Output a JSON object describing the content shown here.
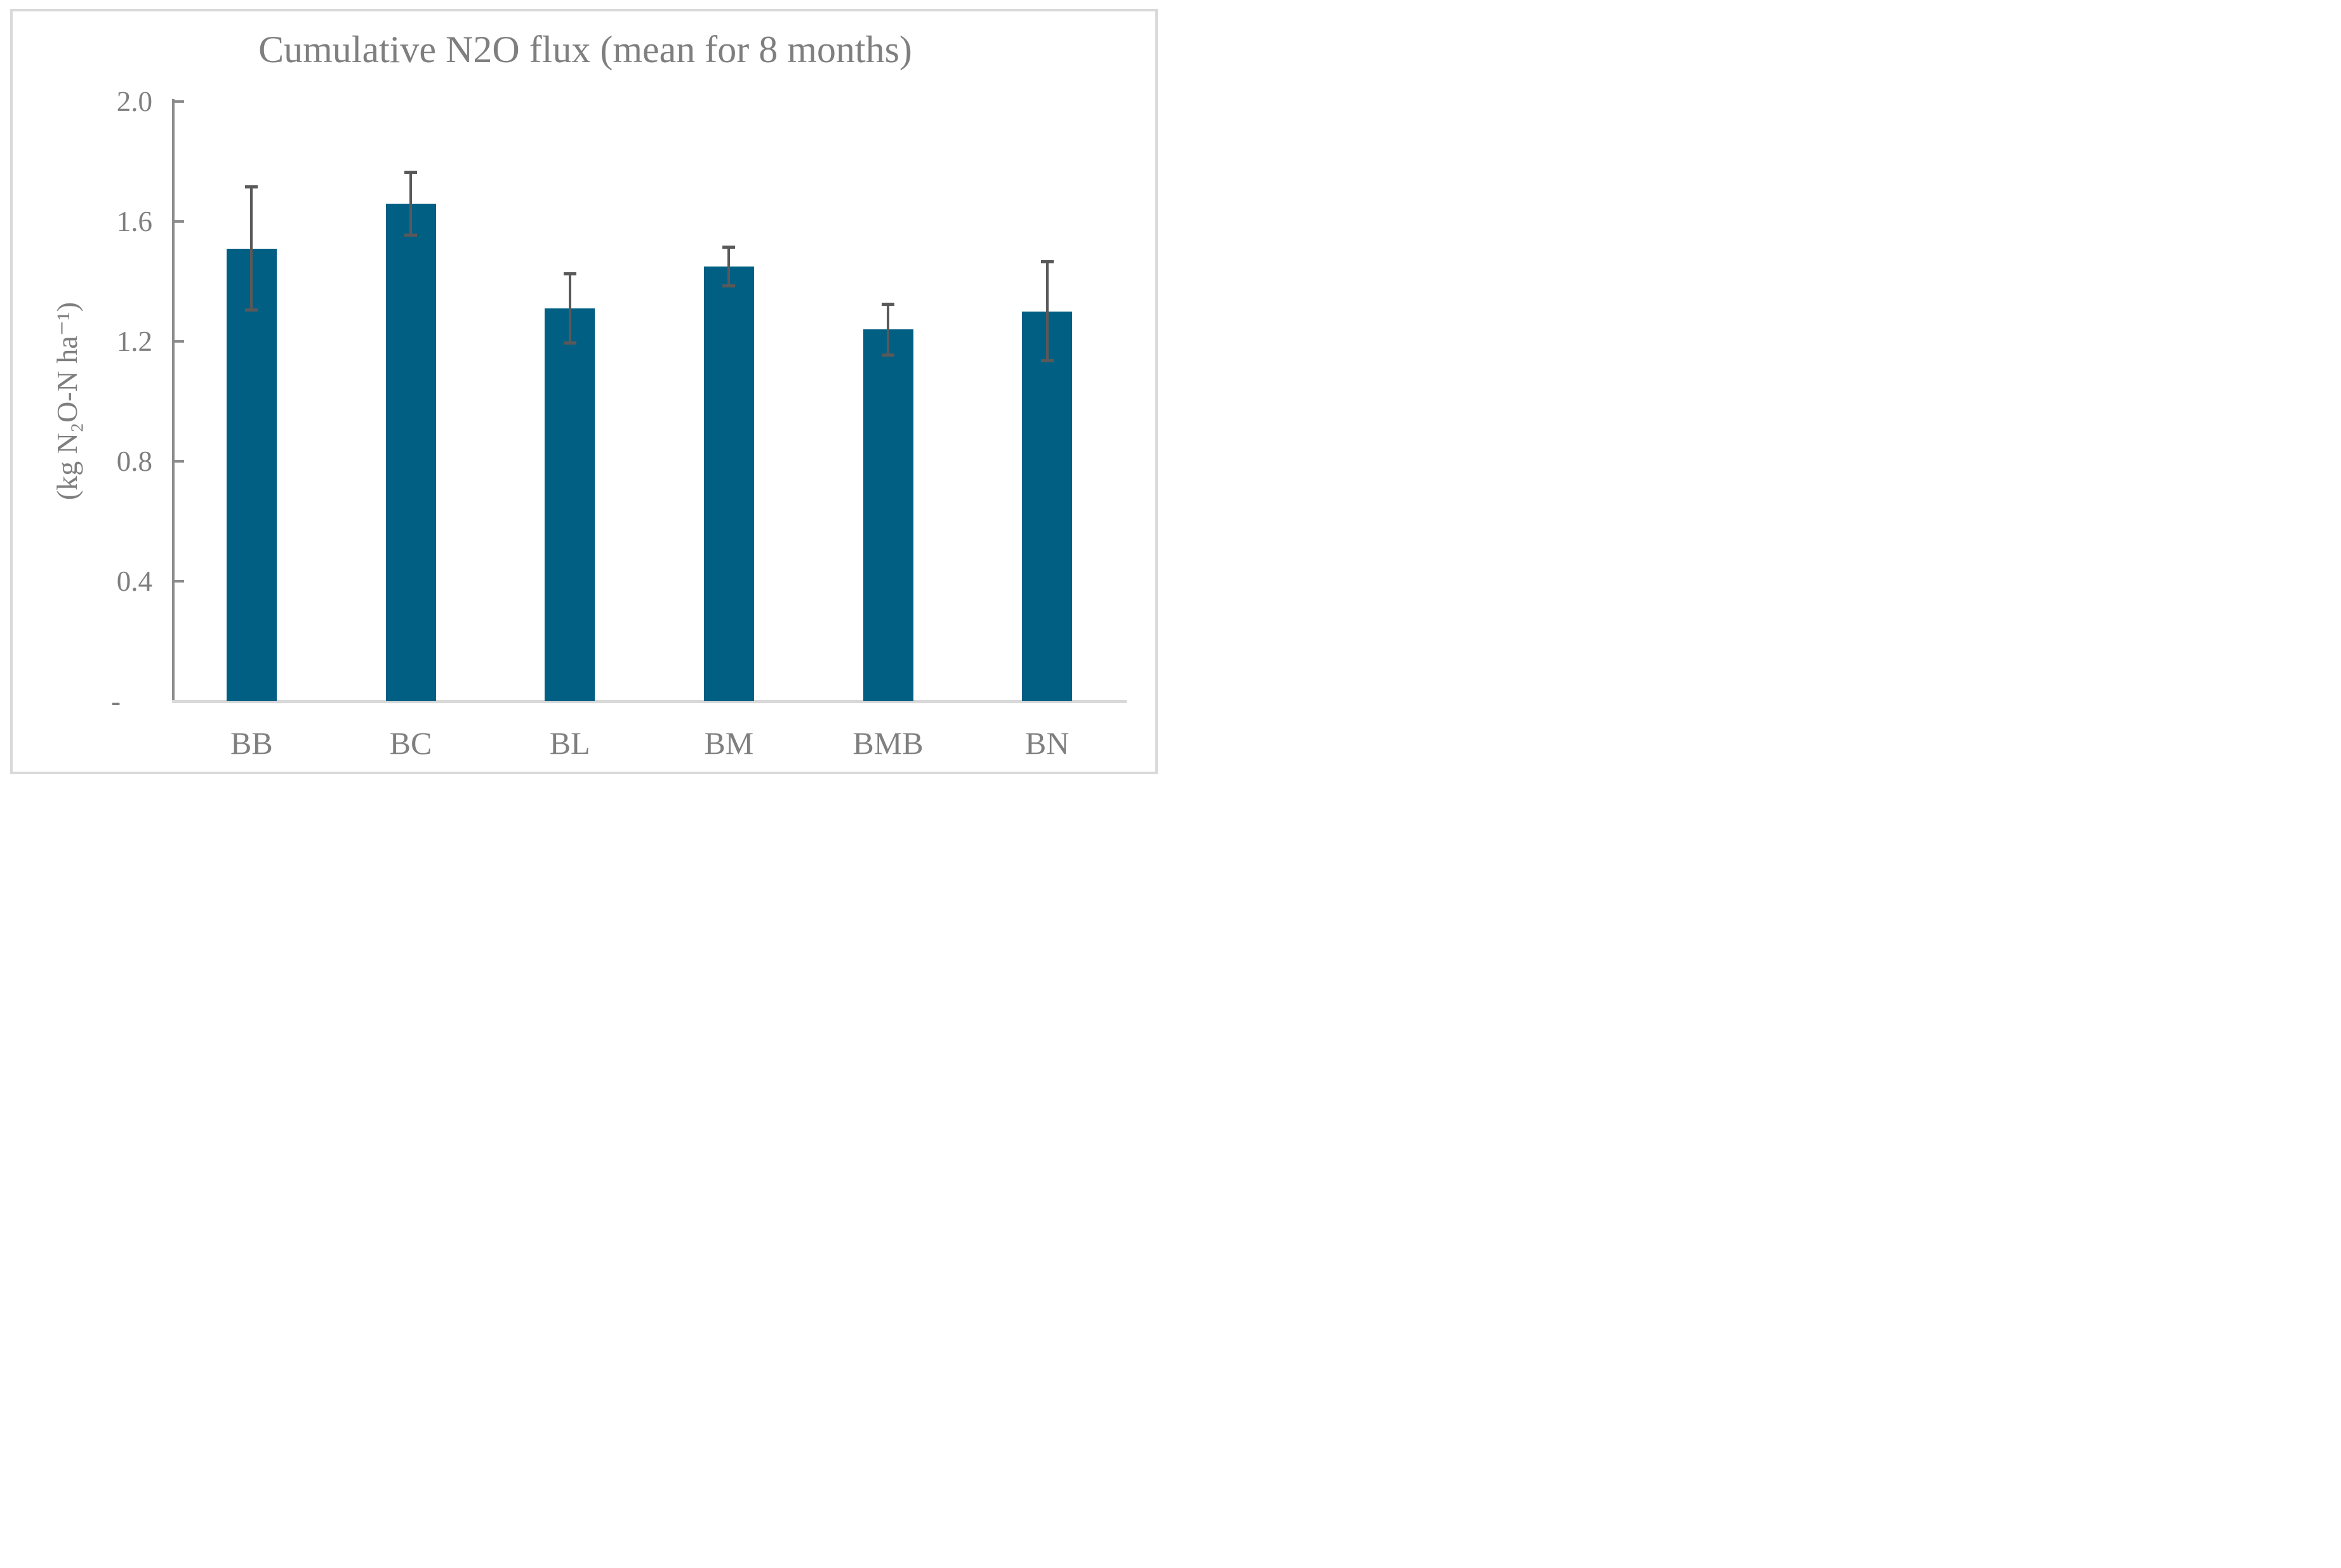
{
  "chart": {
    "title": "Cumulative N2O flux (mean for 8 months)",
    "y_axis_label": "(kg N₂O-N ha⁻¹)"
  },
  "chart_data": {
    "type": "bar",
    "title": "Cumulative N2O flux (mean for 8 months)",
    "xlabel": "",
    "ylabel": "(kg N₂O-N ha⁻¹)",
    "categories": [
      "BB",
      "BC",
      "BL",
      "BM",
      "BMB",
      "BN"
    ],
    "values": [
      1.51,
      1.66,
      1.31,
      1.45,
      1.24,
      1.3
    ],
    "error_bars": [
      0.21,
      0.11,
      0.12,
      0.07,
      0.09,
      0.17
    ],
    "ylim": [
      0,
      2.0
    ],
    "yticks": [
      {
        "label": "2.0",
        "value": 2.0
      },
      {
        "label": "1.6",
        "value": 1.6
      },
      {
        "label": "1.2",
        "value": 1.2
      },
      {
        "label": "0.8",
        "value": 0.8
      },
      {
        "label": "0.4",
        "value": 0.4
      },
      {
        "label": "-",
        "value": 0.0
      }
    ],
    "grid": false,
    "legend": false,
    "bar_color": "#005F83",
    "error_bar_color": "#595959",
    "axis_color": "#8C8C8C",
    "baseline_color": "#D9D9D9",
    "border_color": "#D9D9D9",
    "text_color": "#7F7F7F"
  }
}
